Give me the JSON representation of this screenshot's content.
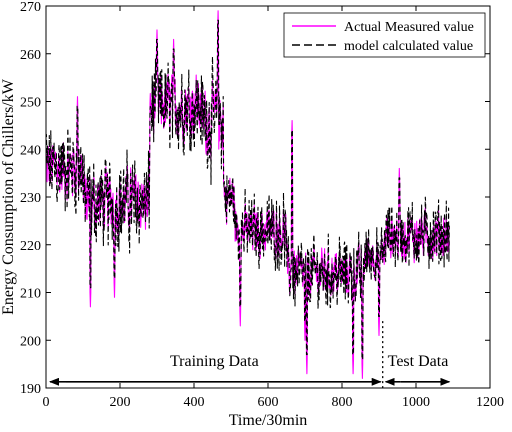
{
  "chart_data": {
    "type": "line",
    "title": "",
    "xlabel": "Time/30min",
    "ylabel": "Energy Consumption of Chillers/kW",
    "xlim": [
      0,
      1200
    ],
    "ylim": [
      190,
      270
    ],
    "xticks": [
      0,
      200,
      400,
      600,
      800,
      1000,
      1200
    ],
    "yticks": [
      190,
      200,
      210,
      220,
      230,
      240,
      250,
      260,
      270
    ],
    "grid": false,
    "legend_position": "top-right",
    "series": [
      {
        "name": "Actual Measured value",
        "color": "#ff00ff",
        "style": "solid"
      },
      {
        "name": "model calculated value",
        "color": "#000000",
        "style": "dashed"
      }
    ],
    "segments": [
      {
        "x_start": 0,
        "x_end": 100,
        "mean": 236,
        "amplitude": 9
      },
      {
        "x_start": 100,
        "x_end": 280,
        "mean": 229,
        "amplitude": 9
      },
      {
        "x_start": 280,
        "x_end": 420,
        "mean": 249,
        "amplitude": 9
      },
      {
        "x_start": 420,
        "x_end": 480,
        "mean": 246,
        "amplitude": 10
      },
      {
        "x_start": 480,
        "x_end": 510,
        "mean": 230,
        "amplitude": 7
      },
      {
        "x_start": 510,
        "x_end": 650,
        "mean": 223,
        "amplitude": 7
      },
      {
        "x_start": 650,
        "x_end": 860,
        "mean": 214,
        "amplitude": 7
      },
      {
        "x_start": 860,
        "x_end": 915,
        "mean": 218,
        "amplitude": 6
      },
      {
        "x_start": 915,
        "x_end": 1090,
        "mean": 222,
        "amplitude": 7
      }
    ],
    "peaks": [
      {
        "x": 85,
        "y": 251
      },
      {
        "x": 300,
        "y": 265
      },
      {
        "x": 345,
        "y": 263
      },
      {
        "x": 465,
        "y": 269
      },
      {
        "x": 665,
        "y": 246
      },
      {
        "x": 955,
        "y": 236
      }
    ],
    "dips": [
      {
        "x": 120,
        "y": 207
      },
      {
        "x": 185,
        "y": 209
      },
      {
        "x": 525,
        "y": 203
      },
      {
        "x": 700,
        "y": 200
      },
      {
        "x": 705,
        "y": 193
      },
      {
        "x": 830,
        "y": 193
      },
      {
        "x": 855,
        "y": 192
      },
      {
        "x": 900,
        "y": 201
      }
    ],
    "split_x": 910,
    "annotations": [
      {
        "text": "Training Data",
        "x_start": 0,
        "x_end": 910
      },
      {
        "text": "Test Data",
        "x_start": 910,
        "x_end": 1090
      }
    ]
  }
}
